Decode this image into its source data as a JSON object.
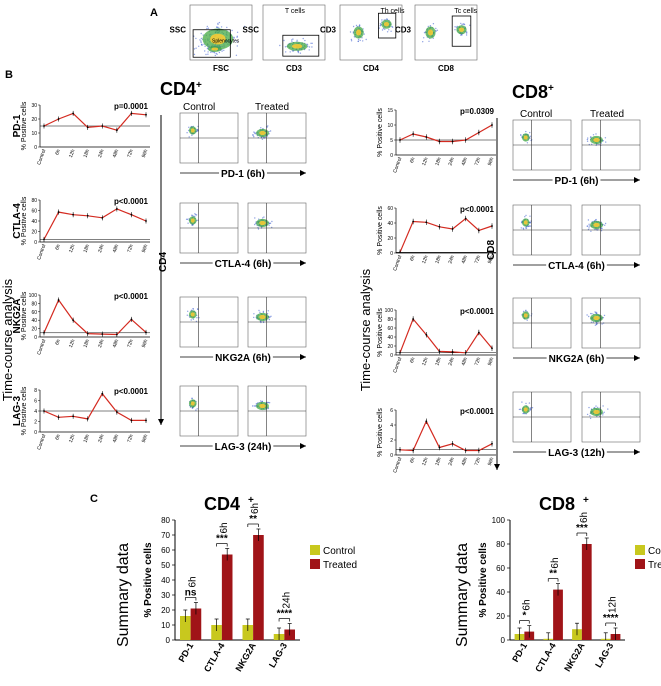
{
  "panel_a": {
    "label": "A",
    "plots": [
      {
        "y": "SSC",
        "x": "FSC",
        "gate": "Splenocytes"
      },
      {
        "y": "SSC",
        "x": "CD3",
        "gate": "T cells"
      },
      {
        "y": "CD3",
        "x": "CD4",
        "gate": "Th cells"
      },
      {
        "y": "CD3",
        "x": "CD8",
        "gate": "Tc cells"
      }
    ]
  },
  "panel_b": {
    "label": "B",
    "side_label": "Time-course analysis",
    "cd4": {
      "header": "CD4",
      "sup": "+",
      "axis": "CD4",
      "control_label": "Control",
      "treated_label": "Treated",
      "rows": [
        {
          "marker": "PD-1",
          "pvalue": "p=0.0001",
          "flow_label": "PD-1 (6h)"
        },
        {
          "marker": "CTLA-4",
          "pvalue": "p<0.0001",
          "flow_label": "CTLA-4 (6h)"
        },
        {
          "marker": "NKG2A",
          "pvalue": "p<0.0001",
          "flow_label": "NKG2A (6h)"
        },
        {
          "marker": "LAG-3",
          "pvalue": "p<0.0001",
          "flow_label": "LAG-3 (24h)"
        }
      ]
    },
    "cd8": {
      "header": "CD8",
      "sup": "+",
      "axis": "CD8",
      "control_label": "Control",
      "treated_label": "Treated",
      "rows": [
        {
          "marker": "PD-1",
          "pvalue": "p=0.0309",
          "flow_label": "PD-1 (6h)"
        },
        {
          "marker": "CTLA-4",
          "pvalue": "p<0.0001",
          "flow_label": "CTLA-4 (6h)"
        },
        {
          "marker": "NKG2A",
          "pvalue": "p<0.0001",
          "flow_label": "NKG2A (6h)"
        },
        {
          "marker": "LAG-3",
          "pvalue": "p<0.0001",
          "flow_label": "LAG-3 (12h)"
        }
      ]
    },
    "ylabel": "% Positive cells",
    "timepoints": [
      "Control",
      "6h",
      "12h",
      "18h",
      "24h",
      "48h",
      "72h",
      "96h"
    ]
  },
  "panel_c": {
    "label": "C",
    "side_label": "Summary data",
    "legend": [
      "Control",
      "Treated"
    ]
  },
  "colors": {
    "line": "#d42a20",
    "control_bar": "#c8c81e",
    "treated_bar": "#a01418"
  },
  "chart_data": [
    {
      "type": "line",
      "title": "CD4+ PD-1",
      "x": [
        "Control",
        "6h",
        "12h",
        "18h",
        "24h",
        "48h",
        "72h",
        "96h"
      ],
      "values": [
        15,
        20,
        24,
        14,
        15,
        12,
        24,
        23
      ],
      "ylim": [
        0,
        30
      ],
      "yticks": [
        "0",
        "10",
        "20",
        "30"
      ]
    },
    {
      "type": "line",
      "title": "CD4+ CTLA-4",
      "x": [
        "Control",
        "6h",
        "12h",
        "18h",
        "24h",
        "48h",
        "72h",
        "96h"
      ],
      "values": [
        5,
        57,
        52,
        50,
        46,
        63,
        52,
        40
      ],
      "ylim": [
        0,
        80
      ],
      "yticks": [
        "0",
        "20",
        "40",
        "60",
        "80"
      ]
    },
    {
      "type": "line",
      "title": "CD4+ NKG2A",
      "x": [
        "Control",
        "6h",
        "12h",
        "18h",
        "24h",
        "48h",
        "72h",
        "96h"
      ],
      "values": [
        10,
        88,
        40,
        8,
        7,
        6,
        42,
        11
      ],
      "ylim": [
        0,
        100
      ],
      "yticks": [
        "0",
        "20",
        "40",
        "60",
        "80",
        "100"
      ]
    },
    {
      "type": "line",
      "title": "CD4+ LAG-3",
      "x": [
        "Control",
        "6h",
        "12h",
        "18h",
        "24h",
        "48h",
        "72h",
        "96h"
      ],
      "values": [
        4,
        2.8,
        3,
        2.5,
        7.3,
        3.8,
        2.2,
        2.2
      ],
      "ylim": [
        0,
        8
      ],
      "yticks": [
        "0",
        "2",
        "4",
        "6",
        "8"
      ]
    },
    {
      "type": "line",
      "title": "CD8+ PD-1",
      "x": [
        "Control",
        "6h",
        "12h",
        "18h",
        "24h",
        "48h",
        "72h",
        "96h"
      ],
      "values": [
        5,
        7,
        6,
        4.5,
        4.5,
        5,
        7.5,
        10
      ],
      "ylim": [
        0,
        15
      ],
      "yticks": [
        "0",
        "5",
        "10",
        "15"
      ]
    },
    {
      "type": "line",
      "title": "CD8+ CTLA-4",
      "x": [
        "Control",
        "6h",
        "12h",
        "18h",
        "24h",
        "48h",
        "72h",
        "96h"
      ],
      "values": [
        1,
        42,
        41,
        35,
        32,
        46,
        30,
        36
      ],
      "ylim": [
        0,
        60
      ],
      "yticks": [
        "0",
        "20",
        "40",
        "60"
      ]
    },
    {
      "type": "line",
      "title": "CD8+ NKG2A",
      "x": [
        "Control",
        "6h",
        "12h",
        "18h",
        "24h",
        "48h",
        "72h",
        "96h"
      ],
      "values": [
        5,
        80,
        45,
        8,
        7,
        5,
        50,
        15
      ],
      "ylim": [
        0,
        100
      ],
      "yticks": [
        "0",
        "20",
        "40",
        "60",
        "80",
        "100"
      ]
    },
    {
      "type": "line",
      "title": "CD8+ LAG-3",
      "x": [
        "Control",
        "6h",
        "12h",
        "18h",
        "24h",
        "48h",
        "72h",
        "96h"
      ],
      "values": [
        0.7,
        0.6,
        4.5,
        1,
        1.5,
        0.6,
        0.6,
        1.5
      ],
      "ylim": [
        0,
        6
      ],
      "yticks": [
        "0",
        "2",
        "4",
        "6"
      ]
    },
    {
      "type": "bar",
      "title": "CD4+",
      "ylabel": "% Positive cells",
      "categories": [
        "PD-1",
        "CTLA-4",
        "NKG2A",
        "LAG-3"
      ],
      "ylim": [
        0,
        80
      ],
      "yticks": [
        "0",
        "10",
        "20",
        "30",
        "40",
        "50",
        "60",
        "70",
        "80"
      ],
      "series": [
        {
          "name": "Control",
          "values": [
            16,
            10,
            10,
            4
          ]
        },
        {
          "name": "Treated",
          "values": [
            21,
            57,
            70,
            7
          ]
        }
      ],
      "significance": [
        "ns",
        "***",
        "**",
        "****"
      ],
      "timepoint_labels": [
        "6h",
        "6h",
        "6h",
        "24h"
      ]
    },
    {
      "type": "bar",
      "title": "CD8+",
      "ylabel": "% Positive cells",
      "categories": [
        "PD-1",
        "CTLA-4",
        "NKG2A",
        "LAG-3"
      ],
      "ylim": [
        0,
        100
      ],
      "yticks": [
        "0",
        "20",
        "40",
        "60",
        "80",
        "100"
      ],
      "series": [
        {
          "name": "Control",
          "values": [
            5,
            1,
            9,
            1
          ]
        },
        {
          "name": "Treated",
          "values": [
            7,
            42,
            80,
            5
          ]
        }
      ],
      "significance": [
        "*",
        "**",
        "***",
        "****"
      ],
      "timepoint_labels": [
        "6h",
        "6h",
        "6h",
        "12h"
      ]
    }
  ]
}
